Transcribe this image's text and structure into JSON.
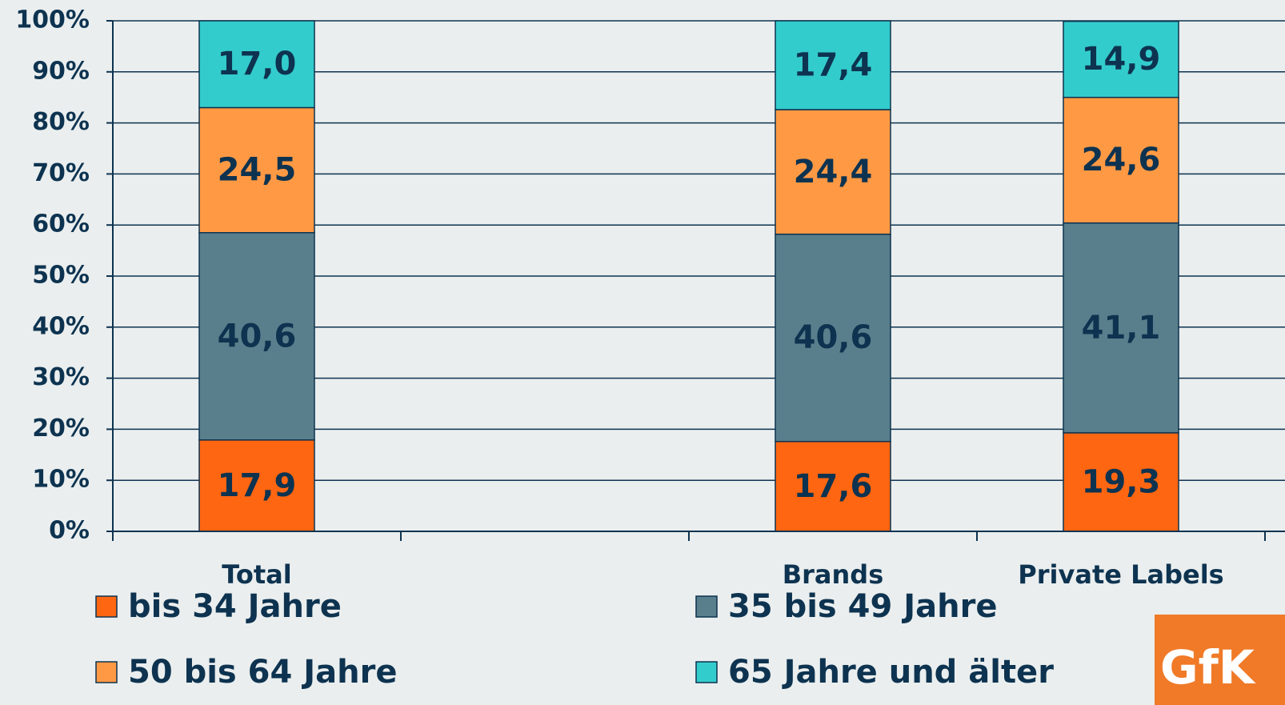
{
  "chart_data": {
    "type": "stacked_bar",
    "categories": [
      "Total",
      null,
      "Brands",
      "Private Labels"
    ],
    "series": [
      {
        "name": "bis 34 Jahre",
        "color": "#ff6611",
        "values": [
          17.9,
          null,
          17.6,
          19.3
        ],
        "value_labels": [
          "17,9",
          null,
          "17,6",
          "19,3"
        ]
      },
      {
        "name": "35 bis 49 Jahre",
        "color": "#5a7f8c",
        "values": [
          40.6,
          null,
          40.6,
          41.1
        ],
        "value_labels": [
          "40,6",
          null,
          "40,6",
          "41,1"
        ]
      },
      {
        "name": "50 bis 64 Jahre",
        "color": "#ff9944",
        "values": [
          24.5,
          null,
          24.4,
          24.6
        ],
        "value_labels": [
          "24,5",
          null,
          "24,4",
          "24,6"
        ]
      },
      {
        "name": "65 Jahre und älter",
        "color": "#33cccc",
        "values": [
          17.0,
          null,
          17.4,
          14.9
        ],
        "value_labels": [
          "17,0",
          null,
          "17,4",
          "14,9"
        ]
      }
    ],
    "ylim": [
      0,
      100
    ],
    "yticks": [
      {
        "value": 0,
        "label": "0%"
      },
      {
        "value": 10,
        "label": "10%"
      },
      {
        "value": 20,
        "label": "20%"
      },
      {
        "value": 30,
        "label": "30%"
      },
      {
        "value": 40,
        "label": "40%"
      },
      {
        "value": 50,
        "label": "50%"
      },
      {
        "value": 60,
        "label": "60%"
      },
      {
        "value": 70,
        "label": "70%"
      },
      {
        "value": 80,
        "label": "80%"
      },
      {
        "value": 90,
        "label": "90%"
      },
      {
        "value": 100,
        "label": "100%"
      }
    ],
    "grid": true,
    "logo": "GfK"
  }
}
